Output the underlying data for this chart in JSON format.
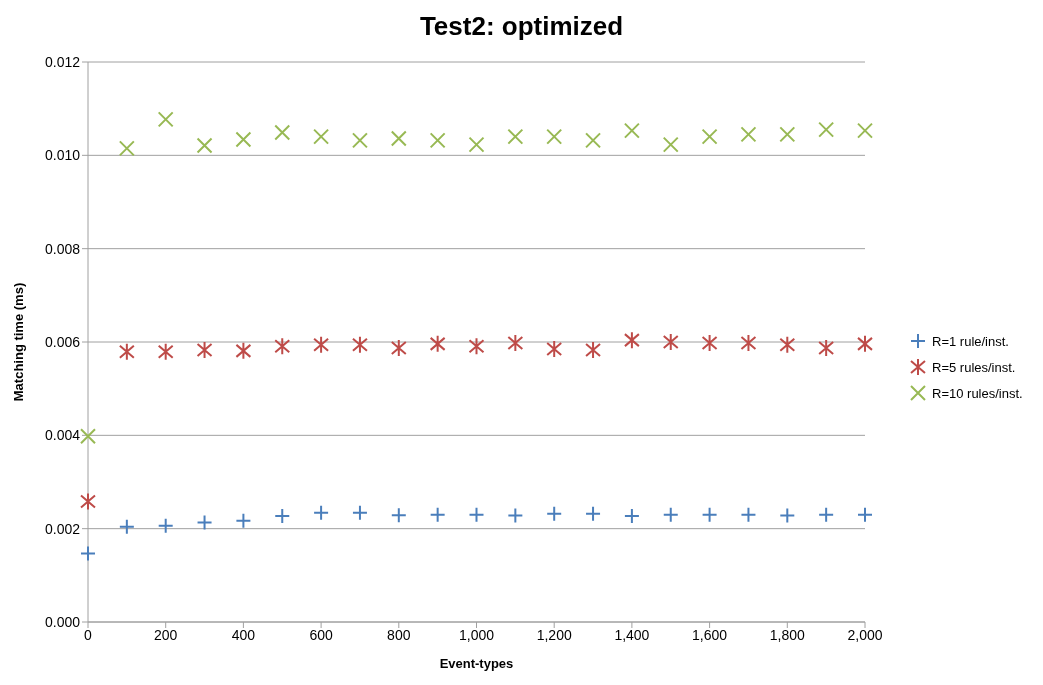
{
  "chart_data": {
    "type": "scatter",
    "title": "Test2: optimized",
    "xlabel": "Event-types",
    "ylabel": "Matching time (ms)",
    "x": [
      0,
      100,
      200,
      300,
      400,
      500,
      600,
      700,
      800,
      900,
      1000,
      1100,
      1200,
      1300,
      1400,
      1500,
      1600,
      1700,
      1800,
      1900,
      2000
    ],
    "series": [
      {
        "name": "R=1 rule/inst.",
        "color": "#4a7ebb",
        "marker": "plus",
        "values": [
          0.00147,
          0.00204,
          0.00206,
          0.00213,
          0.00217,
          0.00227,
          0.00234,
          0.00234,
          0.00229,
          0.0023,
          0.0023,
          0.00228,
          0.00232,
          0.00232,
          0.00227,
          0.0023,
          0.0023,
          0.0023,
          0.00228,
          0.0023,
          0.0023
        ]
      },
      {
        "name": "R=5 rules/inst.",
        "color": "#be4b48",
        "marker": "cross",
        "values": [
          0.00258,
          0.00579,
          0.00579,
          0.00583,
          0.00581,
          0.00591,
          0.00594,
          0.00594,
          0.00587,
          0.00596,
          0.00591,
          0.00598,
          0.00585,
          0.00583,
          0.00604,
          0.006,
          0.00598,
          0.00598,
          0.00594,
          0.00587,
          0.00596
        ]
      },
      {
        "name": "R=10 rules/inst.",
        "color": "#98b954",
        "marker": "x",
        "values": [
          0.00398,
          0.01015,
          0.01077,
          0.01021,
          0.01034,
          0.01049,
          0.0104,
          0.01032,
          0.01036,
          0.01032,
          0.01023,
          0.0104,
          0.0104,
          0.01032,
          0.01053,
          0.01023,
          0.0104,
          0.01045,
          0.01045,
          0.01055,
          0.01053
        ]
      }
    ],
    "xlim": [
      0,
      2000
    ],
    "xticks": [
      0,
      200,
      400,
      600,
      800,
      {
        "value": 1000,
        "label": "1,000"
      },
      {
        "value": 1200,
        "label": "1,200"
      },
      {
        "value": 1400,
        "label": "1,400"
      },
      {
        "value": 1600,
        "label": "1,600"
      },
      {
        "value": 1800,
        "label": "1,800"
      },
      {
        "value": 2000,
        "label": "2,000"
      }
    ],
    "ylim": [
      0,
      0.012
    ],
    "yticks": [
      {
        "value": 0,
        "label": "0.000"
      },
      0.002,
      0.004,
      0.006,
      0.008,
      {
        "value": 0.01,
        "label": "0.010"
      },
      0.012
    ],
    "grid": "y",
    "legend": "right"
  }
}
